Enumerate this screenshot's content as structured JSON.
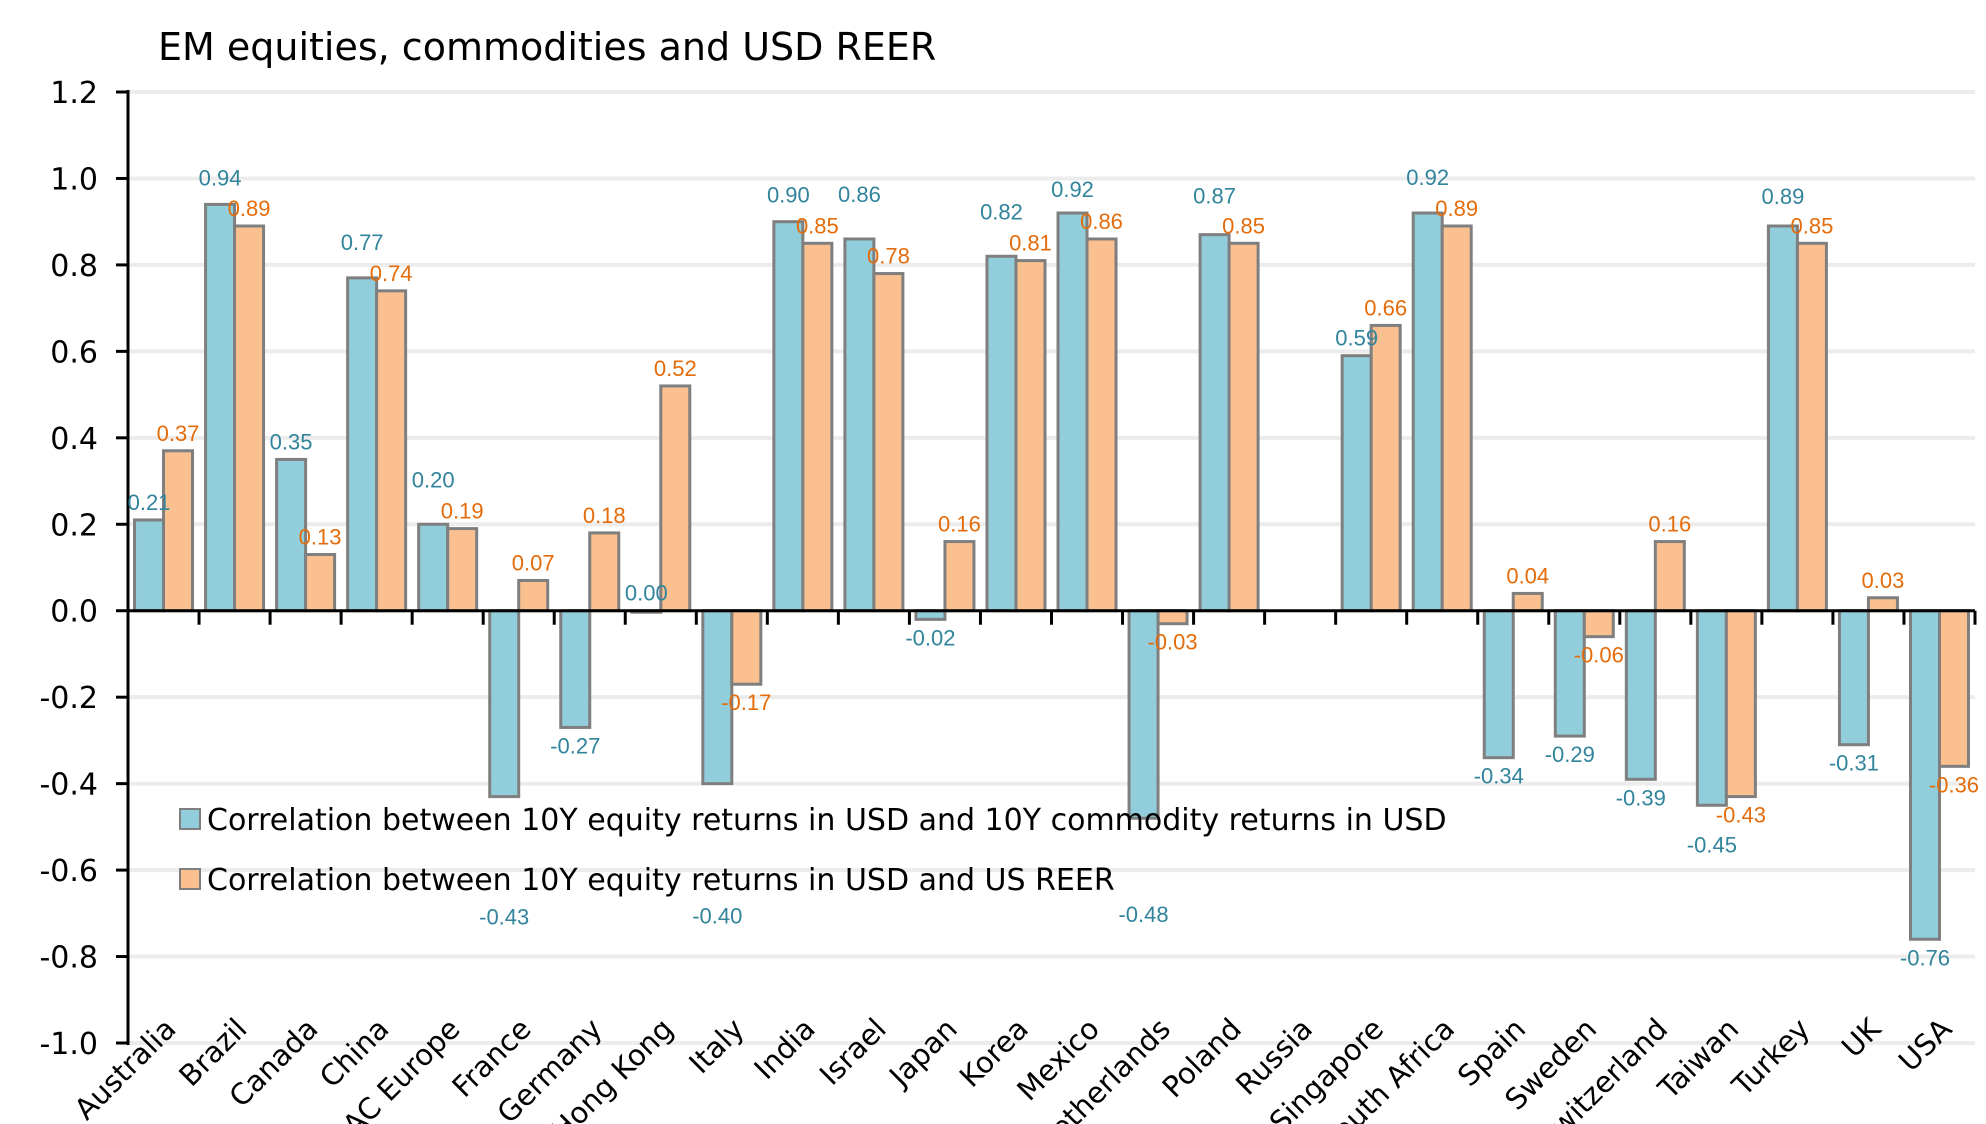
{
  "chart_data": {
    "type": "bar",
    "title": "EM equities, commodities and USD REER",
    "xlabel": "",
    "ylabel": "",
    "ylim": [
      -1.0,
      1.2
    ],
    "yticks": [
      "1.2",
      "1.0",
      "0.8",
      "0.6",
      "0.4",
      "0.2",
      "0.0",
      "-0.2",
      "-0.4",
      "-0.6",
      "-0.8",
      "-1.0"
    ],
    "grid": true,
    "legend_position": "bottom-left",
    "categories": [
      "Australia",
      "Brazil",
      "Canada",
      "China",
      "AC Europe",
      "France",
      "Germany",
      "Hong Kong",
      "Italy",
      "India",
      "Israel",
      "Japan",
      "Korea",
      "Mexico",
      "Netherlands",
      "Poland",
      "Russia",
      "Singapore",
      "South Africa",
      "Spain",
      "Sweden",
      "Switzerland",
      "Taiwan",
      "Turkey",
      "UK",
      "USA"
    ],
    "series": [
      {
        "name": "Correlation between 10Y equity returns in USD and 10Y commodity returns in USD",
        "color": "#92cddc",
        "label_color": "#31849b",
        "values": [
          0.21,
          0.94,
          0.35,
          0.77,
          0.2,
          -0.43,
          -0.27,
          0.0,
          -0.4,
          0.9,
          0.86,
          -0.02,
          0.82,
          0.92,
          -0.48,
          0.87,
          null,
          0.59,
          0.92,
          -0.34,
          -0.29,
          -0.39,
          -0.45,
          0.89,
          -0.31,
          -0.76
        ]
      },
      {
        "name": "Correlation between 10Y equity returns in USD and US REER",
        "color": "#fac090",
        "label_color": "#e46c0a",
        "values": [
          0.37,
          0.89,
          0.13,
          0.74,
          0.19,
          0.07,
          0.18,
          0.52,
          -0.17,
          0.85,
          0.78,
          0.16,
          0.81,
          0.86,
          -0.03,
          0.85,
          null,
          0.66,
          0.89,
          0.04,
          -0.06,
          0.16,
          -0.43,
          0.85,
          0.03,
          -0.36
        ]
      }
    ]
  }
}
